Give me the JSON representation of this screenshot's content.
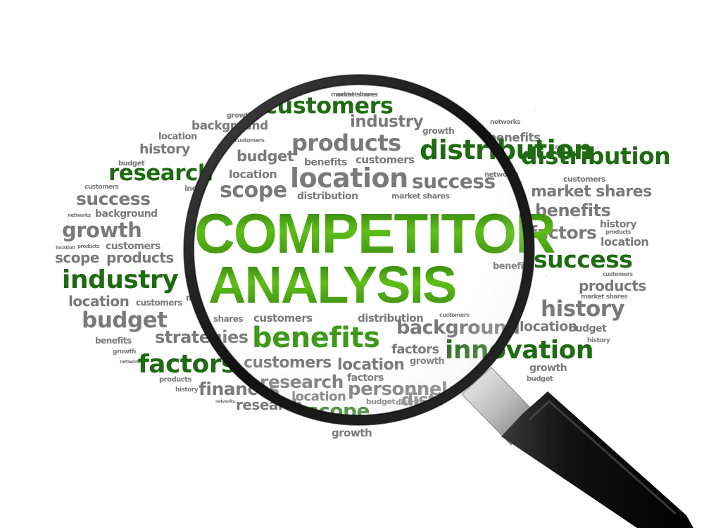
{
  "headline": {
    "line1": "COMPETITOR",
    "line2": "ANALYSIS"
  },
  "words_outside": [
    "market shares",
    "customers",
    "growth",
    "location",
    "background",
    "networks",
    "industry",
    "scope",
    "benefits",
    "history",
    "products",
    "budget",
    "distribution",
    "scope",
    "research",
    "location",
    "customers",
    "success",
    "inde",
    "market shares",
    "networks",
    "background",
    "growth",
    "products",
    "location",
    "customers",
    "scope",
    "products",
    "industry",
    "location",
    "customers",
    "budget",
    "benefits",
    "growth",
    "networks",
    "factors",
    "products",
    "history",
    "networks",
    "strategies",
    "finances",
    "research",
    "distribution",
    "customers",
    "market shares",
    "benefits",
    "factors",
    "history",
    "location",
    "products",
    "success",
    "customers",
    "products",
    "market shares",
    "history",
    "budget",
    "history",
    "location",
    "innovation",
    "customers",
    "growth",
    "budget",
    "growth",
    "shares",
    "ma"
  ],
  "words_in_lens": [
    "market shares",
    "customers",
    "industry",
    "products",
    "distribution",
    "customers",
    "budget",
    "location",
    "location",
    "success",
    "benefits",
    "scope",
    "distribution",
    "market shares",
    "customers",
    "distribution",
    "background",
    "benefits",
    "factors",
    "customers",
    "location",
    "growth",
    "research",
    "factors",
    "personnel",
    "location",
    "budget",
    "scope",
    "distr",
    "growth",
    "networks",
    "benefits",
    "customers"
  ],
  "icons": {
    "magnifier": "magnifying-glass-icon"
  },
  "colors": {
    "headline_green": "#4aa81a",
    "word_green": "#2f7d1a",
    "word_gray": "#7a7a7a",
    "frame": "#1b1b1b",
    "handle": "#141414"
  }
}
